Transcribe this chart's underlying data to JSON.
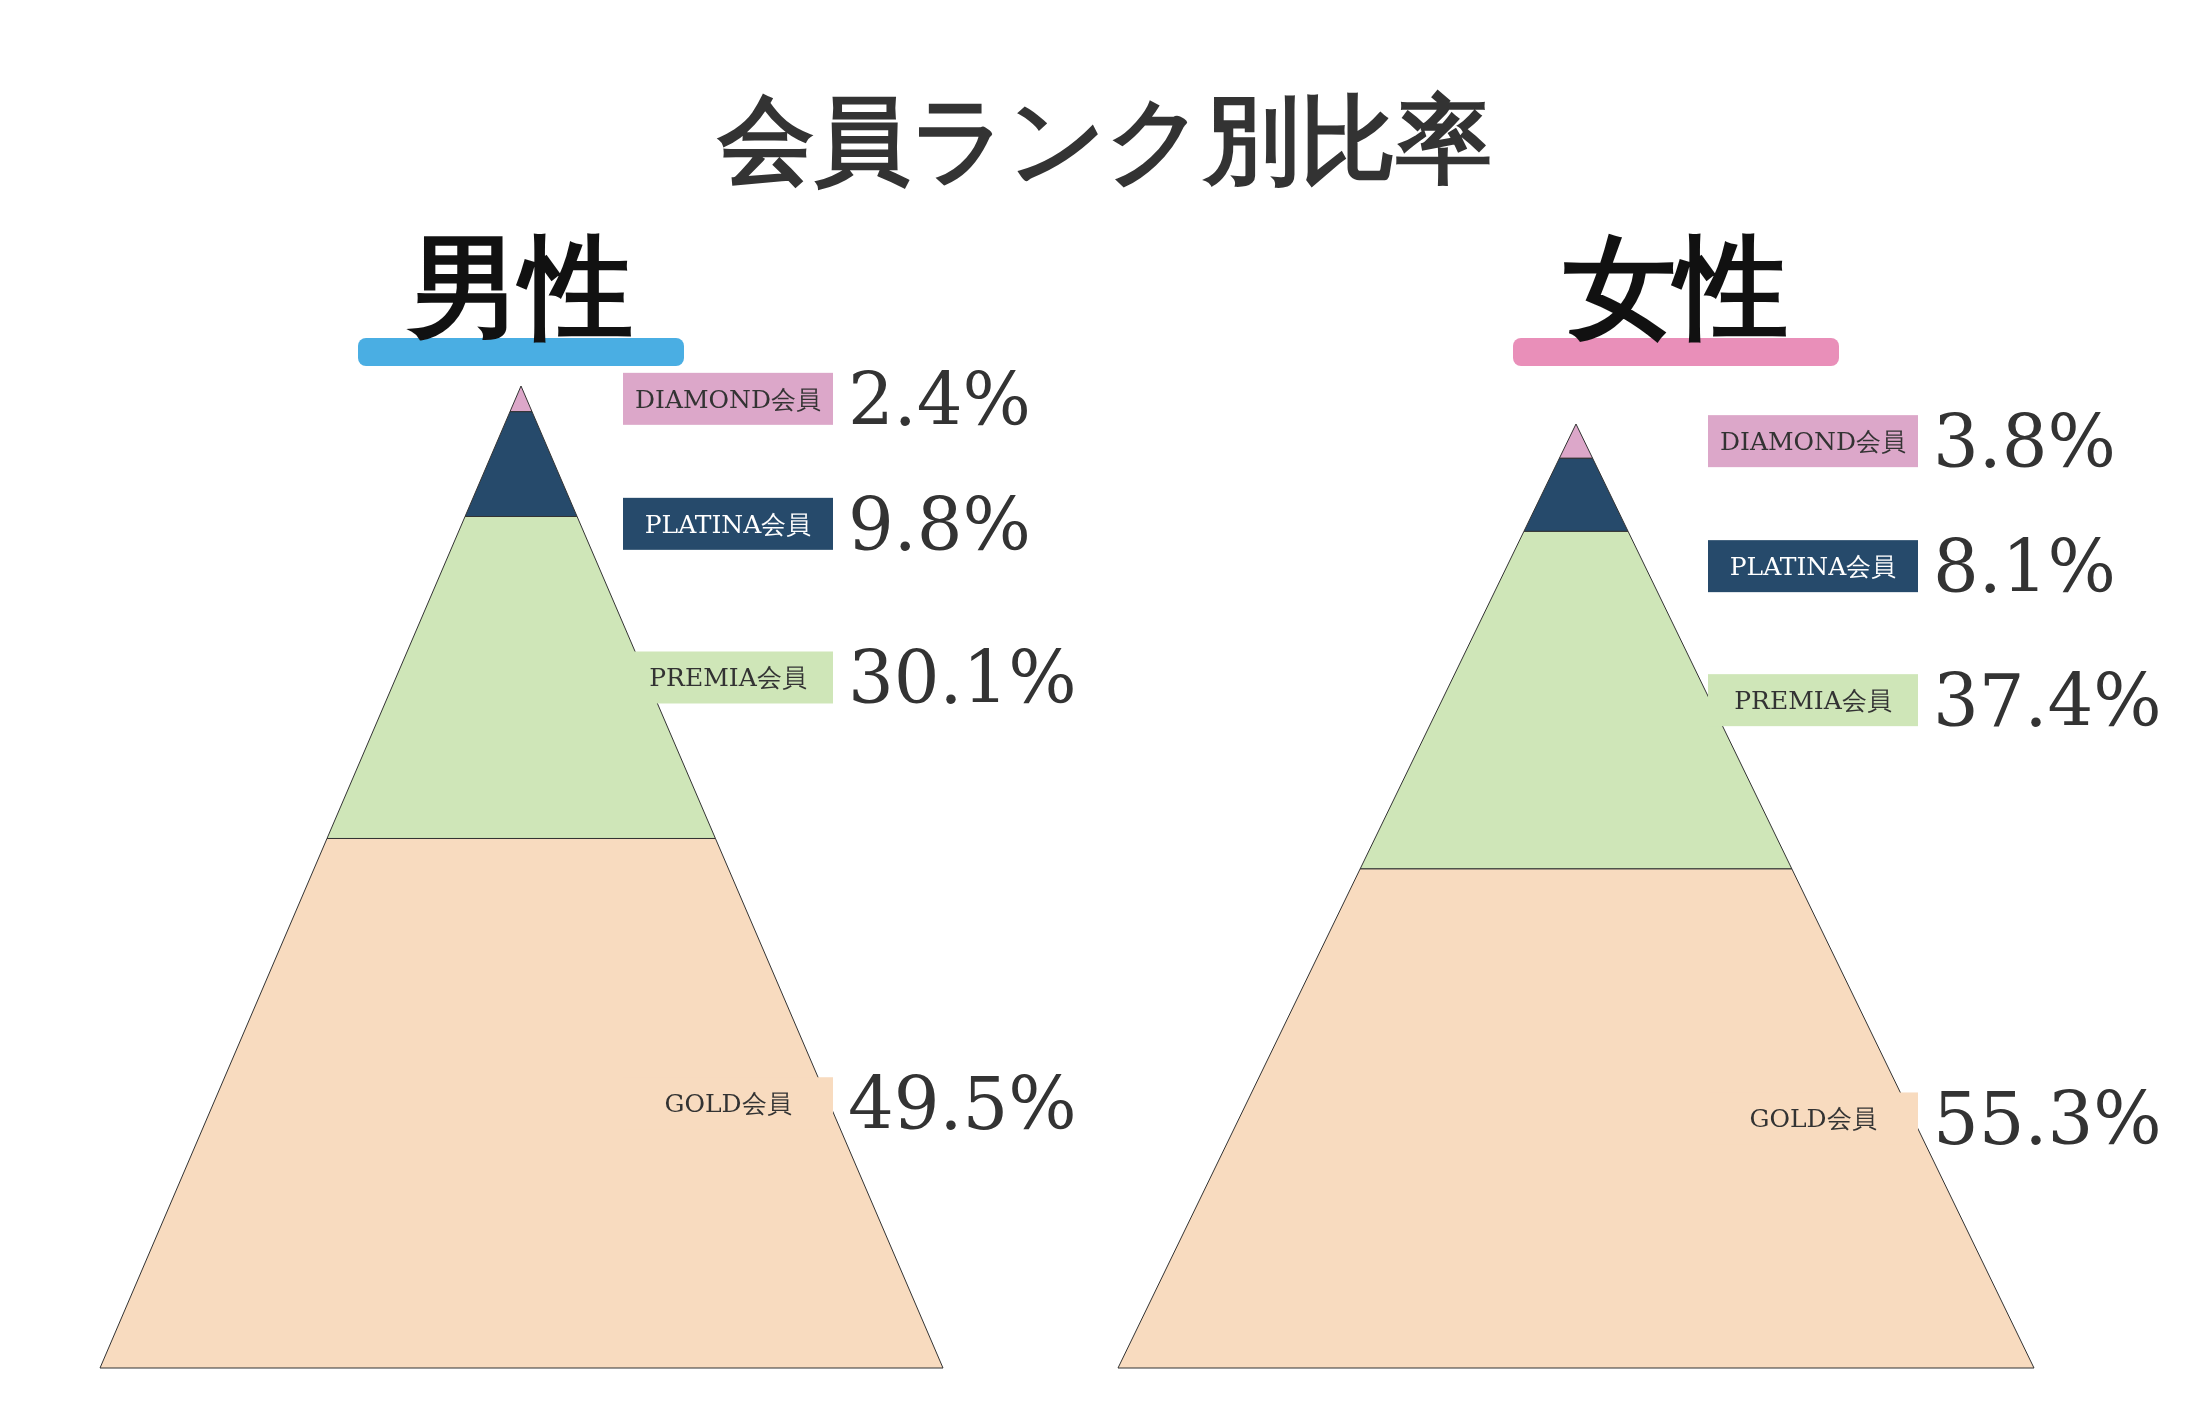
{
  "chart_data": [
    {
      "type": "other",
      "title": "会員ランク別比率",
      "subtitle": "男性",
      "categories": [
        "DIAMOND会員",
        "PLATINA会員",
        "PREMIA会員",
        "GOLD会員"
      ],
      "values": [
        2.4,
        9.8,
        30.1,
        49.5
      ],
      "value_labels": [
        "2.4%",
        "9.8%",
        "30.1%",
        "49.5%"
      ],
      "colors": [
        "#dca7c9",
        "#264a6b",
        "#cfe6b8",
        "#f8dbbf"
      ]
    },
    {
      "type": "other",
      "subtitle": "女性",
      "categories": [
        "DIAMOND会員",
        "PLATINA会員",
        "PREMIA会員",
        "GOLD会員"
      ],
      "values": [
        3.8,
        8.1,
        37.4,
        55.3
      ],
      "value_labels": [
        "3.8%",
        "8.1%",
        "37.4%",
        "55.3%"
      ],
      "colors": [
        "#dca7c9",
        "#264a6b",
        "#cfe6b8",
        "#f8dbbf"
      ]
    }
  ]
}
